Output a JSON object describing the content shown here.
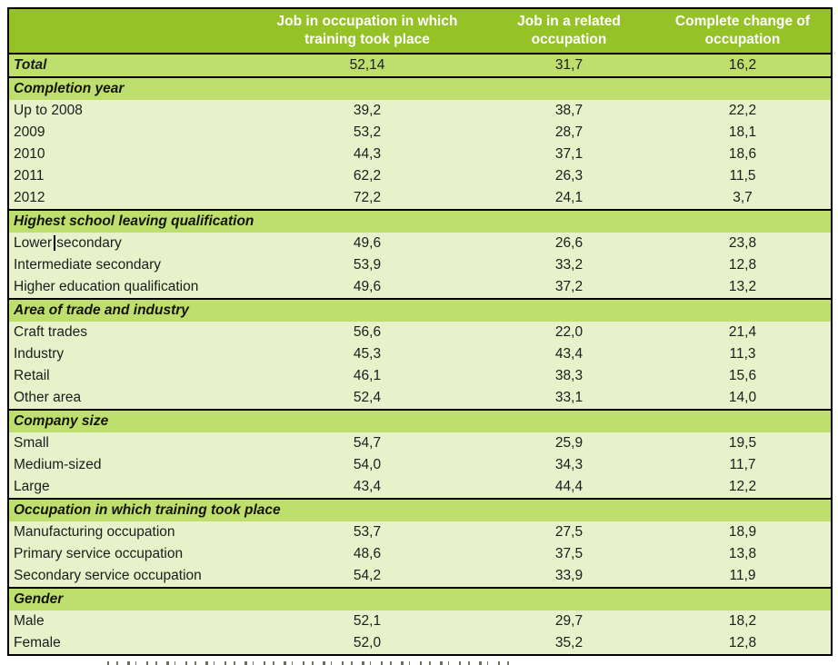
{
  "colors": {
    "header_bg": "#95C226",
    "accent_row_bg": "#BEDF6E",
    "data_row_bg": "#E7F2CA",
    "table_border": "#000000",
    "header_text": "#FFFFFF",
    "body_text": "#1C1C1C",
    "section_title_text": "#141400"
  },
  "table": {
    "columns": [
      "",
      "Job in occupation in which training took place",
      "Job in a related occupation",
      "Complete change of occupation"
    ],
    "total_row": {
      "label": "Total",
      "values": [
        "52,14",
        "31,7",
        "16,2"
      ]
    },
    "sections": [
      {
        "title": "Completion year",
        "rows": [
          {
            "label": "Up to 2008",
            "values": [
              "39,2",
              "38,7",
              "22,2"
            ]
          },
          {
            "label": "2009",
            "values": [
              "53,2",
              "28,7",
              "18,1"
            ]
          },
          {
            "label": "2010",
            "values": [
              "44,3",
              "37,1",
              "18,6"
            ]
          },
          {
            "label": "2011",
            "values": [
              "62,2",
              "26,3",
              "11,5"
            ]
          },
          {
            "label": "2012",
            "values": [
              "72,2",
              "24,1",
              "3,7"
            ]
          }
        ]
      },
      {
        "title": "Highest school leaving qualification",
        "rows": [
          {
            "label": "Lower secondary",
            "label_parts": [
              "Lower",
              "secondary"
            ],
            "text_cursor": true,
            "values": [
              "49,6",
              "26,6",
              "23,8"
            ]
          },
          {
            "label": "Intermediate secondary",
            "values": [
              "53,9",
              "33,2",
              "12,8"
            ]
          },
          {
            "label": "Higher education qualification",
            "values": [
              "49,6",
              "37,2",
              "13,2"
            ]
          }
        ]
      },
      {
        "title": "Area of trade and industry",
        "rows": [
          {
            "label": "Craft trades",
            "values": [
              "56,6",
              "22,0",
              "21,4"
            ]
          },
          {
            "label": "Industry",
            "values": [
              "45,3",
              "43,4",
              "11,3"
            ]
          },
          {
            "label": "Retail",
            "values": [
              "46,1",
              "38,3",
              "15,6"
            ]
          },
          {
            "label": "Other area",
            "values": [
              "52,4",
              "33,1",
              "14,0"
            ]
          }
        ]
      },
      {
        "title": "Company size",
        "rows": [
          {
            "label": "Small",
            "values": [
              "54,7",
              "25,9",
              "19,5"
            ]
          },
          {
            "label": "Medium-sized",
            "values": [
              "54,0",
              "34,3",
              "11,7"
            ]
          },
          {
            "label": "Large",
            "values": [
              "43,4",
              "44,4",
              "12,2"
            ]
          }
        ]
      },
      {
        "title": "Occupation in which training took place",
        "rows": [
          {
            "label": "Manufacturing occupation",
            "values": [
              "53,7",
              "27,5",
              "18,9"
            ]
          },
          {
            "label": "Primary service occupation",
            "values": [
              "48,6",
              "37,5",
              "13,8"
            ]
          },
          {
            "label": "Secondary service occupation",
            "values": [
              "54,2",
              "33,9",
              "11,9"
            ]
          }
        ]
      },
      {
        "title": "Gender",
        "rows": [
          {
            "label": "Male",
            "values": [
              "52,1",
              "29,7",
              "18,2"
            ]
          },
          {
            "label": "Female",
            "values": [
              "52,0",
              "35,2",
              "12,8"
            ]
          }
        ]
      }
    ]
  }
}
